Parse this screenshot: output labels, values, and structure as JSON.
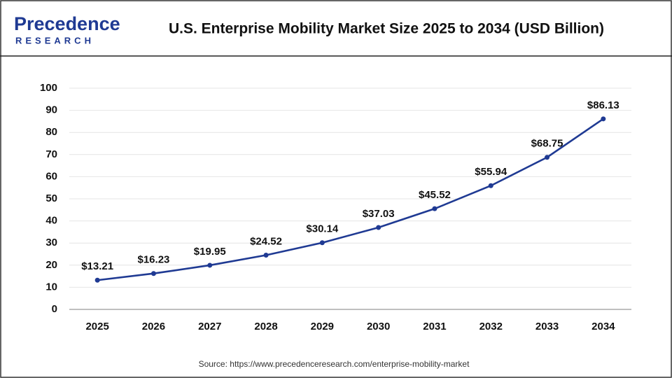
{
  "logo": {
    "name": "Precedence",
    "tagline": "RESEARCH"
  },
  "chart_data": {
    "type": "line",
    "title": "U.S. Enterprise Mobility Market Size 2025 to 2034 (USD Billion)",
    "categories": [
      "2025",
      "2026",
      "2027",
      "2028",
      "2029",
      "2030",
      "2031",
      "2032",
      "2033",
      "2034"
    ],
    "series": [
      {
        "name": "U.S. Enterprise Mobility Market Size",
        "color": "#1f3a93",
        "values": [
          13.21,
          16.23,
          19.95,
          24.52,
          30.14,
          37.03,
          45.52,
          55.94,
          68.75,
          86.13
        ],
        "value_labels": [
          "$13.21",
          "$16.23",
          "$19.95",
          "$24.52",
          "$30.14",
          "$37.03",
          "$45.52",
          "$55.94",
          "$68.75",
          "$86.13"
        ]
      }
    ],
    "ylim": [
      0,
      100
    ],
    "yticks": [
      0,
      10,
      20,
      30,
      40,
      50,
      60,
      70,
      80,
      90,
      100
    ],
    "grid": true,
    "source": "Source: https://www.precedenceresearch.com/enterprise-mobility-market"
  }
}
